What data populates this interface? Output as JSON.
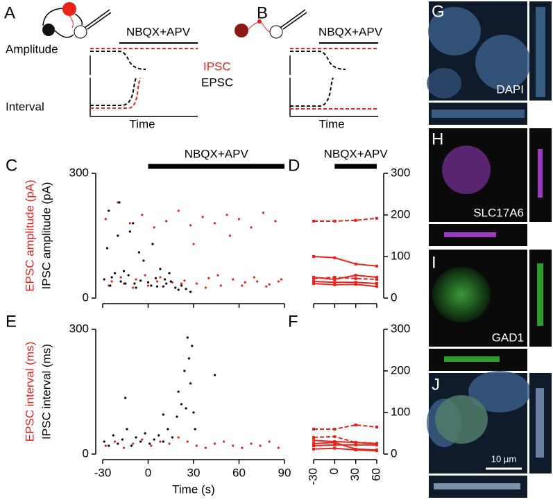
{
  "schematics": [
    {
      "label": "A",
      "annotation": "NBQX+APV",
      "ylabels": [
        "Amplitude",
        "Interval"
      ],
      "xlabel": "Time",
      "legend": [
        "IPSC",
        "EPSC"
      ]
    },
    {
      "label": "B",
      "annotation": "NBQX+APV",
      "xlabel": "Time"
    }
  ],
  "images": [
    {
      "label": "G",
      "stain": "DAPI"
    },
    {
      "label": "H",
      "stain": "SLC17A6"
    },
    {
      "label": "I",
      "stain": "GAD1"
    },
    {
      "label": "J",
      "scale_bar": "10 µm"
    }
  ],
  "chart_data": [
    {
      "type": "scatter",
      "panel": "C",
      "ylabels": [
        "EPSC amplitude (pA)",
        "IPSC amplitude (pA)"
      ],
      "annotation": {
        "text": "NBQX+APV",
        "x": [
          0,
          90
        ]
      },
      "xlim": [
        -30,
        90
      ],
      "xticks": [
        -30,
        0,
        30,
        60,
        90
      ],
      "show_xtick_labels": false,
      "ylim": [
        0,
        300
      ],
      "yticks": [
        0,
        300
      ],
      "series": [
        {
          "color": "#e8231c",
          "x": [
            -28,
            -24,
            -20,
            -16,
            -12,
            -8,
            -4,
            0,
            4,
            8,
            12,
            16,
            20,
            24,
            28,
            32,
            36,
            40,
            44,
            48,
            52,
            56,
            60,
            64,
            68,
            72,
            76,
            80,
            84,
            88,
            -26,
            -18,
            -10,
            -2,
            6,
            14,
            22,
            30,
            38,
            46,
            54,
            62,
            70,
            78,
            86
          ],
          "values": [
            190,
            40,
            230,
            35,
            180,
            45,
            200,
            30,
            170,
            50,
            185,
            38,
            210,
            42,
            175,
            35,
            195,
            48,
            180,
            30,
            200,
            45,
            190,
            38,
            170,
            40,
            205,
            33,
            185,
            45,
            30,
            50,
            25,
            55,
            40,
            60,
            35,
            130,
            25,
            55,
            150,
            30,
            50,
            28,
            40
          ]
        },
        {
          "color": "#000000",
          "x": [
            -29,
            -27,
            -25,
            -22,
            -20,
            -18,
            -15,
            -13,
            -10,
            -8,
            -5,
            -3,
            0,
            2,
            5,
            8,
            10,
            12,
            15,
            18,
            20,
            22,
            25,
            28,
            -26,
            -19,
            -12,
            -6,
            3,
            14,
            -24,
            -16,
            -9,
            6,
            11
          ],
          "values": [
            45,
            120,
            30,
            60,
            150,
            40,
            35,
            55,
            180,
            25,
            42,
            90,
            38,
            30,
            48,
            70,
            28,
            35,
            40,
            25,
            20,
            30,
            22,
            15,
            210,
            230,
            160,
            110,
            130,
            60,
            50,
            65,
            35,
            28,
            45
          ]
        }
      ]
    },
    {
      "type": "line",
      "panel": "D",
      "annotation": {
        "text": "NBQX+APV",
        "x": [
          0,
          60
        ]
      },
      "x": [
        -30,
        0,
        30,
        60
      ],
      "xlim": [
        -30,
        60
      ],
      "xticks": [
        -30,
        0,
        30,
        60
      ],
      "show_xtick_labels": false,
      "ylim": [
        0,
        300
      ],
      "yticks": [
        0,
        100,
        200,
        300
      ],
      "yaxis": "right",
      "series": [
        {
          "color": "#e8231c",
          "dashed": true,
          "values": [
            185,
            185,
            187,
            192
          ]
        },
        {
          "color": "#e8231c",
          "dashed": false,
          "values": [
            100,
            97,
            82,
            77
          ]
        },
        {
          "color": "#e8231c",
          "dashed": false,
          "values": [
            50,
            45,
            55,
            50
          ]
        },
        {
          "color": "#e8231c",
          "dashed": true,
          "values": [
            47,
            50,
            47,
            45
          ]
        },
        {
          "color": "#e8231c",
          "dashed": false,
          "values": [
            40,
            38,
            38,
            35
          ]
        },
        {
          "color": "#e8231c",
          "dashed": false,
          "values": [
            35,
            32,
            33,
            28
          ]
        }
      ]
    },
    {
      "type": "scatter",
      "panel": "E",
      "ylabels": [
        "EPSC interval (ms)",
        "IPSC interval (ms)"
      ],
      "xlabel": "Time (s)",
      "xlim": [
        -30,
        90
      ],
      "xticks": [
        -30,
        0,
        30,
        60,
        90
      ],
      "show_xtick_labels": true,
      "ylim": [
        0,
        300
      ],
      "yticks": [
        0,
        300
      ],
      "series": [
        {
          "color": "#e8231c",
          "x": [
            -28,
            -22,
            -16,
            -10,
            -4,
            2,
            8,
            14,
            20,
            26,
            32,
            38,
            44,
            50,
            56,
            62,
            68,
            74,
            80,
            86
          ],
          "values": [
            20,
            30,
            15,
            25,
            35,
            20,
            30,
            25,
            40,
            30,
            20,
            15,
            25,
            30,
            20,
            15,
            25,
            20,
            30,
            15
          ]
        },
        {
          "color": "#000000",
          "x": [
            -29,
            -26,
            -23,
            -20,
            -17,
            -14,
            -11,
            -8,
            -5,
            -2,
            1,
            4,
            7,
            10,
            13,
            16,
            19,
            22,
            24,
            26,
            27,
            28,
            29,
            30,
            31,
            -15,
            10,
            20,
            25,
            44
          ],
          "values": [
            30,
            20,
            45,
            25,
            35,
            60,
            20,
            40,
            30,
            50,
            25,
            35,
            45,
            30,
            60,
            40,
            90,
            120,
            200,
            280,
            230,
            170,
            260,
            100,
            60,
            135,
            95,
            150,
            110,
            190
          ]
        }
      ]
    },
    {
      "type": "line",
      "panel": "F",
      "x": [
        -30,
        0,
        30,
        60
      ],
      "xlim": [
        -30,
        60
      ],
      "xticks": [
        -30,
        0,
        30,
        60
      ],
      "show_xtick_labels": true,
      "ylim": [
        0,
        300
      ],
      "yticks": [
        0,
        100,
        200,
        300
      ],
      "yaxis": "right",
      "series": [
        {
          "color": "#e8231c",
          "dashed": true,
          "values": [
            60,
            60,
            70,
            65
          ]
        },
        {
          "color": "#e8231c",
          "dashed": true,
          "values": [
            40,
            42,
            28,
            26
          ]
        },
        {
          "color": "#e8231c",
          "dashed": false,
          "values": [
            33,
            30,
            28,
            25
          ]
        },
        {
          "color": "#e8231c",
          "dashed": false,
          "values": [
            25,
            28,
            12,
            10
          ]
        },
        {
          "color": "#e8231c",
          "dashed": false,
          "values": [
            20,
            22,
            22,
            22
          ]
        },
        {
          "color": "#e8231c",
          "dashed": false,
          "values": [
            12,
            14,
            10,
            8
          ]
        }
      ]
    }
  ]
}
